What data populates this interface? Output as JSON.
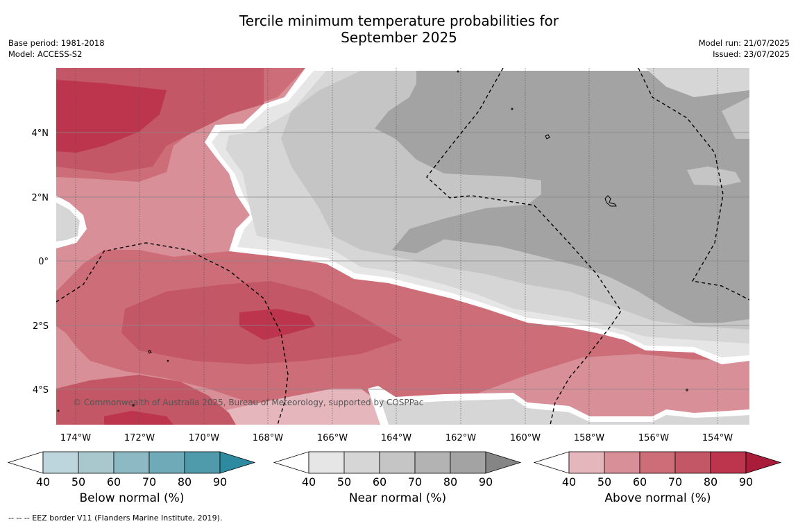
{
  "title": {
    "line1": "Tercile minimum temperature probabilities for",
    "line2": "September 2025"
  },
  "info_left": {
    "base_period": "Base period: 1981-2018",
    "model": "Model: ACCESS-S2"
  },
  "info_right": {
    "model_run": "Model run: 21/07/2025",
    "issued": "Issued: 23/07/2025"
  },
  "map": {
    "lon_range": [
      -174.6,
      -153.0
    ],
    "lat_range": [
      -5.1,
      6.0
    ],
    "lon_ticks": [
      "174°W",
      "172°W",
      "170°W",
      "168°W",
      "166°W",
      "164°W",
      "162°W",
      "160°W",
      "158°W",
      "156°W",
      "154°W"
    ],
    "lat_ticks": [
      "4°N",
      "2°N",
      "0°",
      "2°S",
      "4°S"
    ],
    "copyright": "© Commonwealth of Australia 2025, Bureau of Meteorology, supported by COSPPac"
  },
  "colorbars": [
    {
      "label": "Below normal (%)",
      "ticks": [
        "40",
        "50",
        "60",
        "70",
        "80",
        "90"
      ],
      "colors": [
        "#ffffff",
        "#bdd5dc",
        "#a8c8cd",
        "#8db9c4",
        "#6eaab8",
        "#4f9bac",
        "#2d8aa0"
      ]
    },
    {
      "label": "Near normal (%)",
      "ticks": [
        "40",
        "50",
        "60",
        "70",
        "80",
        "90"
      ],
      "colors": [
        "#ffffff",
        "#e6e6e6",
        "#d6d6d6",
        "#c5c5c5",
        "#b3b3b3",
        "#a3a3a3",
        "#858585"
      ]
    },
    {
      "label": "Above normal (%)",
      "ticks": [
        "40",
        "50",
        "60",
        "70",
        "80",
        "90"
      ],
      "colors": [
        "#ffffff",
        "#e5b7bd",
        "#d88f98",
        "#cc6d77",
        "#c35765",
        "#bc354d",
        "#a91c3a"
      ]
    }
  ],
  "footnote": "--  --  -- EEZ border V11 (Flanders Marine Institute, 2019)."
}
